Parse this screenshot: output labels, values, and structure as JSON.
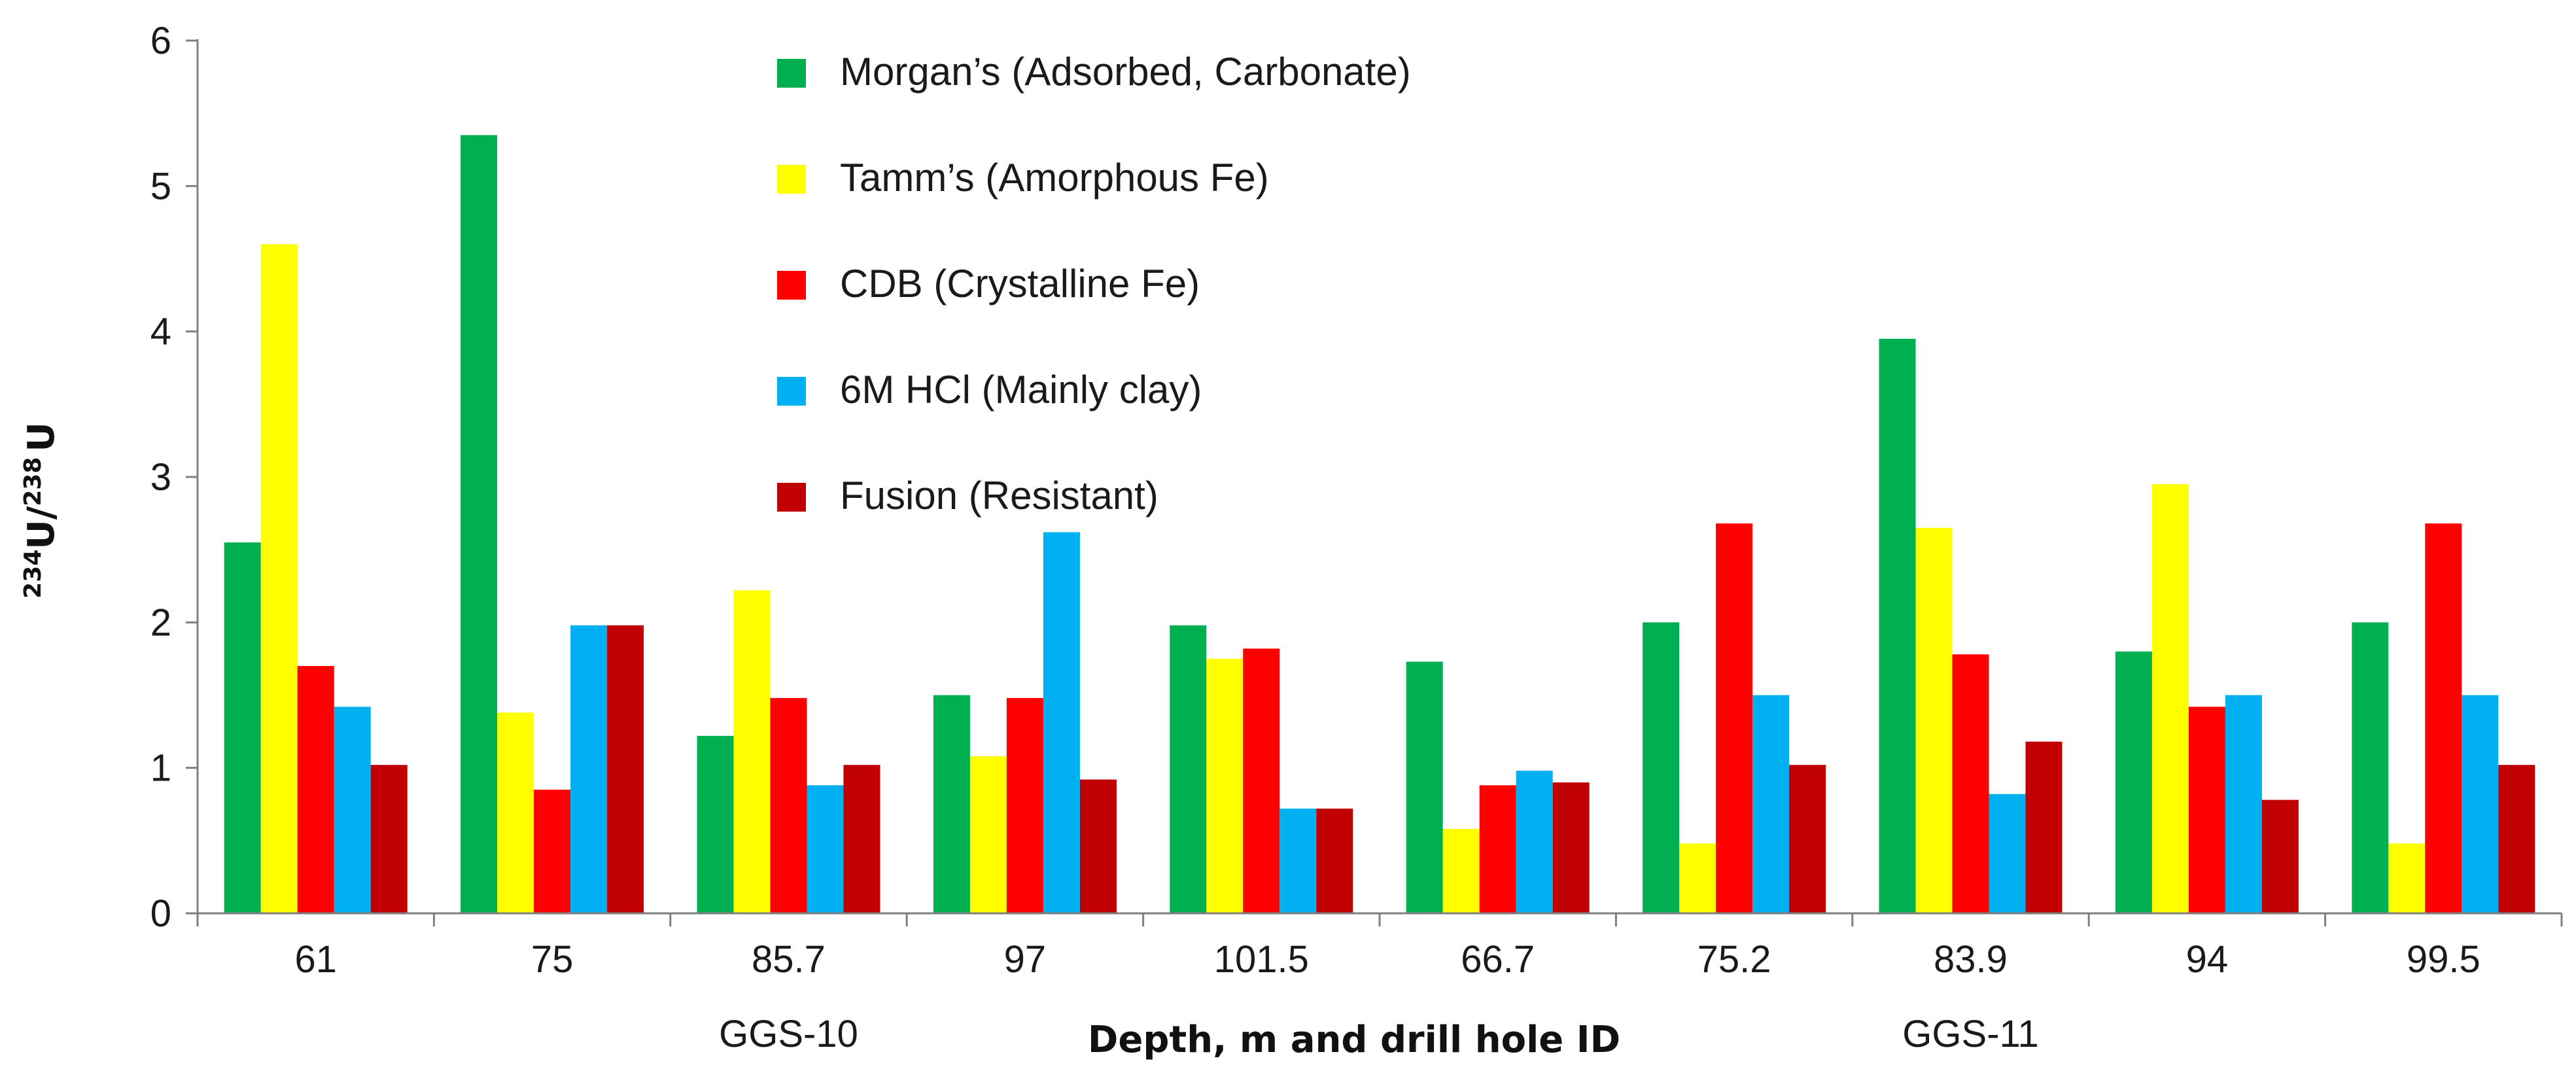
{
  "chart_data": {
    "type": "bar",
    "title": "",
    "xlabel": "Depth, m and drill hole ID",
    "ylabel": {
      "prefix_sup": "234",
      "base": "U/",
      "mid_sup": "238",
      "suffix": "U"
    },
    "ylim": [
      0,
      6
    ],
    "yticks": [
      0,
      1,
      2,
      3,
      4,
      5,
      6
    ],
    "categories": [
      "61",
      "75",
      "85.7",
      "97",
      "101.5",
      "66.7",
      "75.2",
      "83.9",
      "94",
      "99.5"
    ],
    "group_labels": [
      {
        "text": "GGS-10",
        "category_index": 2
      },
      {
        "text": "GGS-11",
        "category_index": 7
      }
    ],
    "legend_position": "top-center",
    "series": [
      {
        "name": "Morgan’s (Adsorbed, Carbonate)",
        "color": "#00b050",
        "values": [
          2.55,
          5.35,
          1.22,
          1.5,
          1.98,
          1.73,
          2.0,
          3.95,
          1.8,
          2.0
        ]
      },
      {
        "name": "Tamm’s (Amorphous Fe)",
        "color": "#ffff00",
        "values": [
          4.6,
          1.38,
          2.22,
          1.08,
          1.75,
          0.58,
          0.48,
          2.65,
          2.95,
          0.48
        ]
      },
      {
        "name": "CDB (Crystalline Fe)",
        "color": "#ff0000",
        "values": [
          1.7,
          0.85,
          1.48,
          1.48,
          1.82,
          0.88,
          2.68,
          1.78,
          1.42,
          2.68
        ]
      },
      {
        "name": "6M HCl (Mainly clay)",
        "color": "#00b0f0",
        "values": [
          1.42,
          1.98,
          0.88,
          2.62,
          0.72,
          0.98,
          1.5,
          0.82,
          1.5,
          1.5
        ]
      },
      {
        "name": "Fusion (Resistant)",
        "color": "#c00000",
        "values": [
          1.02,
          1.98,
          1.02,
          0.92,
          0.72,
          0.9,
          1.02,
          1.18,
          0.78,
          1.02
        ]
      }
    ]
  }
}
